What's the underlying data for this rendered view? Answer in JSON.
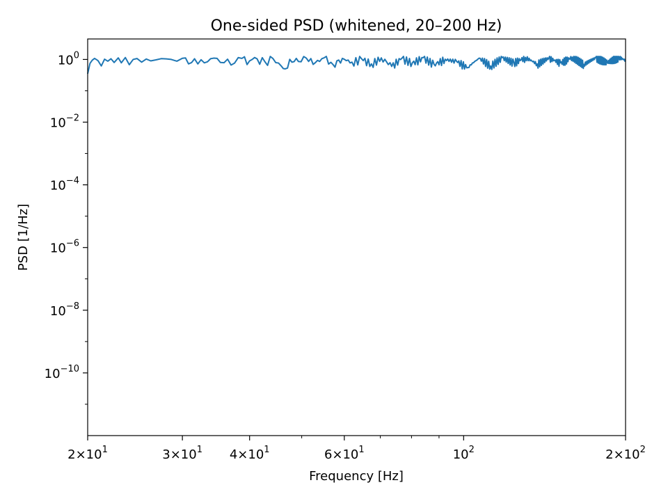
{
  "chart_data": {
    "type": "line",
    "title": "One-sided PSD (whitened, 20–200 Hz)",
    "xlabel": "Frequency [Hz]",
    "ylabel": "PSD [1/Hz]",
    "xscale": "log",
    "yscale": "log",
    "xlim": [
      20,
      200
    ],
    "ylim": [
      1e-12,
      4.5
    ],
    "grid": false,
    "line_color": "#1f77b4",
    "x_ticks": [
      {
        "value": 20,
        "mantissa": "2",
        "exp": "1"
      },
      {
        "value": 30,
        "mantissa": "3",
        "exp": "1"
      },
      {
        "value": 40,
        "mantissa": "4",
        "exp": "1"
      },
      {
        "value": 60,
        "mantissa": "6",
        "exp": "1"
      },
      {
        "value": 100,
        "mantissa": "",
        "exp": "2"
      },
      {
        "value": 200,
        "mantissa": "2",
        "exp": "2"
      }
    ],
    "y_ticks": [
      {
        "value": 1,
        "exp": "0"
      },
      {
        "value": 0.01,
        "exp": "−2"
      },
      {
        "value": 0.0001,
        "exp": "−4"
      },
      {
        "value": 1e-06,
        "exp": "−6"
      },
      {
        "value": 1e-08,
        "exp": "−8"
      },
      {
        "value": 1e-10,
        "exp": "−10"
      }
    ],
    "series": [
      {
        "x": [
          20,
          20.2,
          20.4,
          20.6,
          20.9,
          21.2,
          21.5,
          21.8,
          22.1,
          22.4,
          22.8,
          23.1,
          23.5,
          23.9,
          24.3,
          24.7,
          25.2,
          25.7,
          26.2,
          26.8,
          27.4,
          28.0,
          28.6,
          29.3,
          30.0,
          30.8,
          31.6,
          32.5,
          33.4,
          34.3,
          35.3,
          36.4,
          37.5,
          38.7,
          40.0,
          41.3,
          42.7,
          44.2,
          45.8,
          46.6,
          47.5,
          49.3,
          51.0,
          53.0,
          55.0,
          57.2,
          59.5,
          62.0,
          64.6,
          67.4,
          70.3,
          73.5,
          76.8,
          80.3,
          84.1,
          88.1,
          92.4,
          97.0,
          101.8,
          106.9,
          112.3,
          118.0,
          124.0,
          130.3,
          137.0,
          144.0,
          151.4,
          159.2,
          167.4,
          176.0,
          185.0,
          194.5,
          200
        ],
        "values": [
          0.35,
          0.75,
          0.95,
          1.08,
          0.92,
          0.62,
          1.02,
          0.88,
          1.05,
          0.8,
          1.12,
          0.78,
          1.15,
          0.68,
          1.0,
          1.07,
          0.82,
          1.03,
          0.9,
          0.97,
          1.06,
          1.04,
          1.0,
          0.88,
          1.09,
          0.72,
          1.05,
          0.98,
          0.84,
          1.1,
          0.8,
          1.02,
          0.76,
          1.08,
          0.9,
          1.05,
          0.85,
          1.07,
          0.62,
          0.5,
          1.01,
          0.86,
          1.1,
          0.79,
          1.12,
          0.68,
          1.08,
          0.82,
          1.05,
          0.72,
          1.12,
          0.6,
          1.1,
          0.78,
          1.14,
          0.7,
          1.02,
          0.88,
          0.55,
          1.1,
          0.62,
          1.14,
          0.8,
          1.16,
          0.72,
          1.12,
          0.78,
          1.18,
          0.7,
          1.14,
          0.82,
          1.2,
          0.95
        ]
      }
    ]
  }
}
